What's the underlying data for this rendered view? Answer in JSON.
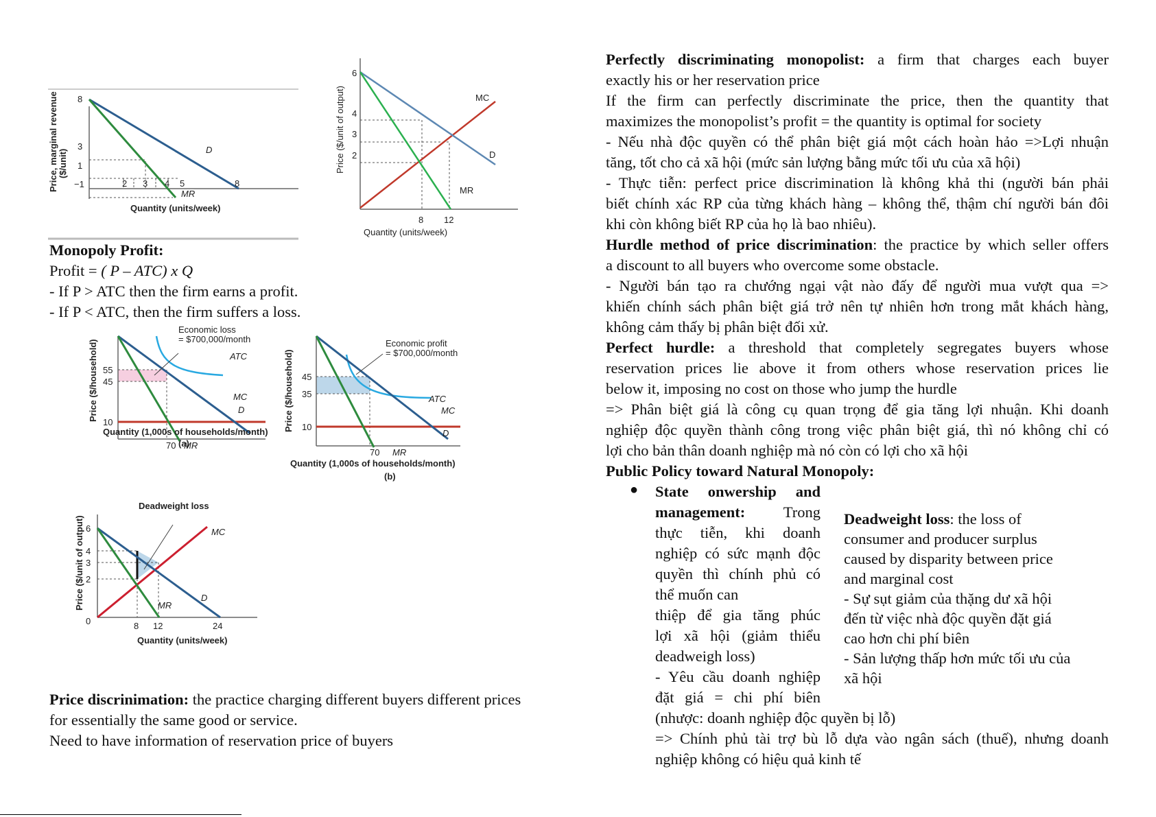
{
  "chart1": {
    "ylabel1": "Price, marginal revenue",
    "ylabel2": "($/unit)",
    "xlabel": "Quantity (units/week)",
    "yticks": [
      "8",
      "3",
      "1",
      "−1"
    ],
    "xticks": [
      "2",
      "3",
      "4",
      "5",
      "8"
    ],
    "D": "D",
    "MR": "MR"
  },
  "chart2": {
    "ylabel": "Price ($/unit of output)",
    "xlabel": "Quantity (units/week)",
    "yticks": [
      "6",
      "4",
      "3",
      "2"
    ],
    "xticks": [
      "8",
      "12"
    ],
    "MC": "MC",
    "D": "D",
    "MR": "MR"
  },
  "chart3": {
    "ylabel": "Price ($/household)",
    "xlabel": "Quantity (1,000s of households/month)",
    "caption": "(a)",
    "yticks": [
      "55",
      "45",
      "10"
    ],
    "xtick": "70",
    "loss1": "Economic loss",
    "loss2": "= $700,000/month",
    "ATC": "ATC",
    "MC": "MC",
    "D": "D",
    "MR": "MR"
  },
  "chart4": {
    "ylabel": "Price ($/household)",
    "xlabel": "Quantity (1,000s of households/month)",
    "caption": "(b)",
    "yticks": [
      "45",
      "35",
      "10"
    ],
    "xtick": "70",
    "profit1": "Economic profit",
    "profit2": "= $700,000/month",
    "ATC": "ATC",
    "MC": "MC",
    "D": "D",
    "MR": "MR"
  },
  "chart5": {
    "title": "Deadweight loss",
    "ylabel": "Price ($/unit of output)",
    "xlabel": "Quantity (units/week)",
    "yticks": [
      "6",
      "4",
      "3",
      "2",
      "0"
    ],
    "xticks": [
      "8",
      "12",
      "24"
    ],
    "MC": "MC",
    "D": "D",
    "MR": "MR"
  },
  "left": {
    "mp_title": "Monopoly Profit:",
    "mp_formula_a": "Profit = ",
    "mp_formula_b": "( P – ATC) x Q",
    "mp_l1": "- If P > ATC then the firm earns a profit.",
    "mp_l2": "- If P < ATC, then the firm suffers a loss.",
    "pd_title": "Price discrinimation:",
    "pd_l1": " the practice charging different buyers different prices",
    "pd_l2": "for essentially the same good or service.",
    "pd_l3": "Need to have information of reservation price of buyers"
  },
  "right": {
    "pdm_title": "Perfectly discriminating monopolist:",
    "pdm_l1": " a firm that charges each buyer",
    "pdm_l2": "exactly his or her reservation price",
    "pdm_l3": "If the firm can perfectly discriminate the price, then the quantity that",
    "pdm_l4": "maximizes the monopolist’s profit = the quantity is optimal for society",
    "pdm_l5": " - Nếu nhà độc quyền có thể phân biệt giá một cách hoàn hảo =>Lợi nhuận",
    "pdm_l6": "tăng, tốt cho cả xã hội (mức sản lượng bằng mức tối ưu của xã hội)",
    "pdm_l7": "- Thực tiễn: perfect price discrimination là không khả thi (người bán phải",
    "pdm_l8": "biết chính xác RP của từng khách hàng – không thể, thậm chí người bán đôi",
    "pdm_l9": "khi còn không biết RP của họ là bao nhiêu).",
    "hm_title": "Hurdle method of price discrimination",
    "hm_l1": ": the practice by which seller offers",
    "hm_l2": "a discount to all buyers who overcome some obstacle.",
    "hm_l3": "- Người bán tạo ra chướng ngại vật nào đấy để người mua vượt qua =>",
    "hm_l4": "khiến chính sách phân biệt giá trở nên tự nhiên hơn trong mắt khách hàng,",
    "hm_l5": "không cảm thấy bị phân biệt đối xử.",
    "ph_title": "Perfect hurdle:",
    "ph_l1": " a threshold that completely segregates buyers whose",
    "ph_l2": "reservation prices lie above it from others whose reservation prices lie",
    "ph_l3": "below it, imposing no cost on those who jump the hurdle",
    "ph_l4": "=> Phân biệt giá là công cụ quan trọng để gia tăng lợi nhuận. Khi doanh",
    "ph_l5": "nghiệp độc quyền thành công trong việc phân biệt giá, thì nó không chỉ có",
    "ph_l6": "lợi cho bản thân doanh nghiệp mà nó còn có lợi cho xã hội",
    "pp_title": "Public Policy toward Natural Monopoly:",
    "bullet": "●",
    "so_l1a": "State",
    "so_l1b": "onwership",
    "so_l1c": "and",
    "so_l2a": "management:",
    "so_l2b": "Trong",
    "so_l3a": "thực",
    "so_l3b": "tiễn,",
    "so_l3c": "khi",
    "so_l3d": "doanh",
    "so_l4": "nghiệp có sức mạnh độc",
    "so_l5": "quyền thì chính phủ có",
    "so_l6": "thể muốn can",
    "so_l7": "thiệp để gia tăng phúc",
    "so_l8": "lợi xã hội (giảm thiểu",
    "so_l9": "deadweigh loss)",
    "so_l10": "- Yêu cầu doanh nghiệp",
    "so_l11a": "đặt",
    "so_l11b": "giá",
    "so_l11c": "=",
    "so_l11d": "chi",
    "so_l11e": "phí",
    "so_l11f": "biên",
    "so_l12": "(nhược: doanh nghiệp độc quyền bị lỗ)",
    "so_l13": "=> Chính phủ tài trợ bù lỗ dựa vào ngân sách (thuế), nhưng doanh",
    "so_l14": "nghiệp không có hiệu quả kinh tế",
    "dw_title": "Deadweight loss",
    "dw_l1": ": the loss of",
    "dw_l2": "consumer and producer surplus",
    "dw_l3": "caused by disparity between price",
    "dw_l4": "and marginal cost",
    "dw_l5": "- Sự sụt giảm của thặng dư xã hội",
    "dw_l6": "đến từ việc nhà độc quyền đặt giá",
    "dw_l7": "cao hơn chi phí biên",
    "dw_l8": "- Sản lượng thấp hơn mức tối ưu của",
    "dw_l9": "xã hội"
  },
  "colors": {
    "demand": "#2c5e8f",
    "mr": "#2e8b3e",
    "mc": "#c0392b",
    "atc": "#29a9e1",
    "loss": "#f6cfe0",
    "profit": "#bdd7ea",
    "grey": "#aaaaaa"
  }
}
